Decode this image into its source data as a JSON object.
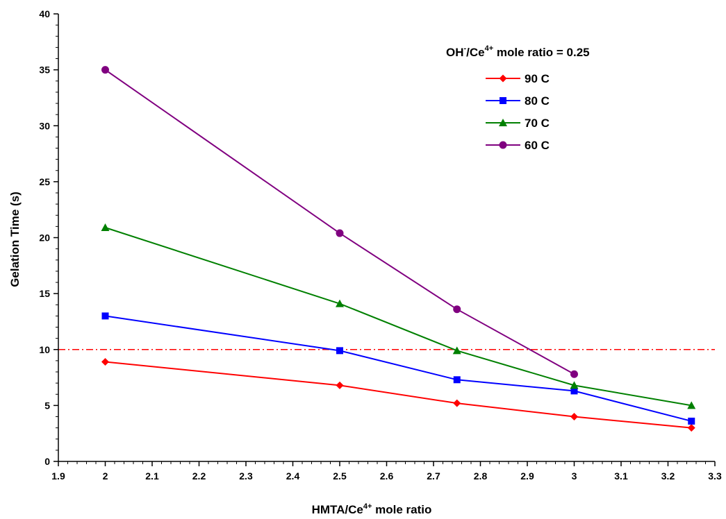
{
  "chart_data": {
    "type": "line",
    "title": "",
    "xlabel_main": "HMTA/Ce",
    "xlabel_sup": "4+",
    "xlabel_tail": " mole ratio",
    "ylabel": "Gelation Time (s)",
    "xlim": [
      1.9,
      3.3
    ],
    "ylim": [
      0,
      40
    ],
    "x_ticks": [
      "1.9",
      "2",
      "2.1",
      "2.2",
      "2.3",
      "2.4",
      "2.5",
      "2.6",
      "2.7",
      "2.8",
      "2.9",
      "3",
      "3.1",
      "3.2",
      "3.3"
    ],
    "y_ticks": [
      "0",
      "5",
      "10",
      "15",
      "20",
      "25",
      "30",
      "35",
      "40"
    ],
    "grid": false,
    "legend_position": "top-right",
    "legend_title": {
      "part1": "OH",
      "sup1": "-",
      "part2": "/Ce",
      "sup2": "4+",
      "part3": " mole ratio = 0.25"
    },
    "reference_line": {
      "y": 10,
      "color": "#ff0000",
      "style": "dash-dot"
    },
    "series": [
      {
        "name": "90 C",
        "color": "#ff0000",
        "marker": "diamond",
        "x": [
          2,
          2.5,
          2.75,
          3,
          3.25
        ],
        "y": [
          8.9,
          6.8,
          5.2,
          4.0,
          3.0
        ]
      },
      {
        "name": "80 C",
        "color": "#0000ff",
        "marker": "square",
        "x": [
          2,
          2.5,
          2.75,
          3,
          3.25
        ],
        "y": [
          13.0,
          9.9,
          7.3,
          6.3,
          3.6
        ]
      },
      {
        "name": "70 C",
        "color": "#008000",
        "marker": "triangle",
        "x": [
          2,
          2.5,
          2.75,
          3,
          3.25
        ],
        "y": [
          20.9,
          14.1,
          9.9,
          6.8,
          5.0
        ]
      },
      {
        "name": "60 C",
        "color": "#800080",
        "marker": "circle",
        "x": [
          2,
          2.5,
          2.75,
          3
        ],
        "y": [
          35.0,
          20.4,
          13.6,
          7.8
        ]
      }
    ]
  }
}
